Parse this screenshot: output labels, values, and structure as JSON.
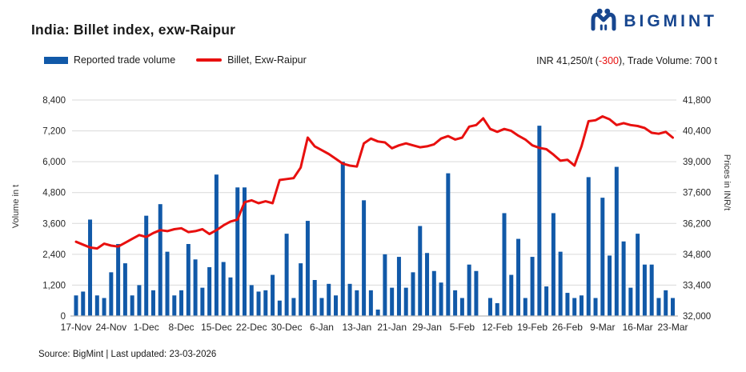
{
  "header": {
    "title": "India: Billet index, exw-Raipur",
    "logo_text": "BIGMINT",
    "logo_color": "#17468f"
  },
  "legend": {
    "bar_label": "Reported trade volume",
    "line_label": "Billet, Exw-Raipur"
  },
  "price_line": {
    "prefix": "INR 41,250/t (",
    "change": "-300",
    "suffix": "), Trade Volume: 700 t"
  },
  "footer": {
    "text": "Source: BigMint | Last updated: 23-03-2026"
  },
  "colors": {
    "bar": "#1159a8",
    "line": "#e8100f",
    "grid": "#d9d9d9",
    "baseline": "#b7b7b7"
  },
  "chart_data": {
    "type": "bar+line",
    "title": "India: Billet index, exw-Raipur",
    "x_tick_labels": [
      "17-Nov",
      "24-Nov",
      "1-Dec",
      "8-Dec",
      "15-Dec",
      "22-Dec",
      "30-Dec",
      "6-Jan",
      "13-Jan",
      "21-Jan",
      "29-Jan",
      "5-Feb",
      "12-Feb",
      "19-Feb",
      "26-Feb",
      "9-Mar",
      "16-Mar",
      "23-Mar"
    ],
    "x_tick_every": 5,
    "left_axis": {
      "title": "Volume in t",
      "min": 0,
      "max": 8400,
      "step": 1200
    },
    "right_axis": {
      "title": "Prices in INR/t",
      "min": 32000,
      "max": 43200,
      "step": 1400
    },
    "grid": "horizontal",
    "legend_position": "top-left",
    "bar_series": {
      "name": "Reported trade volume",
      "axis": "left",
      "values": [
        800,
        950,
        3750,
        800,
        700,
        1700,
        2800,
        2050,
        800,
        1200,
        3900,
        1000,
        4350,
        2500,
        800,
        1000,
        2800,
        2200,
        1100,
        1900,
        5500,
        2100,
        1500,
        5000,
        5000,
        1200,
        950,
        1000,
        1600,
        600,
        3200,
        700,
        2050,
        3700,
        1400,
        700,
        1250,
        800,
        6000,
        1250,
        1000,
        4500,
        1000,
        250,
        2400,
        1100,
        2300,
        1100,
        1700,
        3500,
        2450,
        1750,
        1300,
        5550,
        1000,
        700,
        2000,
        1750,
        0,
        700,
        500,
        4000,
        1600,
        3000,
        700,
        2300,
        7400,
        1150,
        4000,
        2500,
        900,
        700,
        800,
        5400,
        700,
        4600,
        2350,
        5800,
        2900,
        1100,
        3200,
        2000,
        2000,
        700,
        1000,
        700
      ]
    },
    "line_series": {
      "name": "Billet, Exw-Raipur",
      "axis": "right",
      "values": [
        35850,
        35700,
        35550,
        35500,
        35750,
        35650,
        35600,
        35800,
        36000,
        36200,
        36100,
        36300,
        36450,
        36400,
        36500,
        36550,
        36350,
        36400,
        36500,
        36250,
        36450,
        36700,
        36900,
        37000,
        37900,
        38000,
        37850,
        37950,
        37850,
        39050,
        39100,
        39150,
        39700,
        41250,
        40800,
        40600,
        40400,
        40150,
        39900,
        39800,
        39750,
        40950,
        41200,
        41050,
        41000,
        40700,
        40850,
        40950,
        40850,
        40750,
        40800,
        40900,
        41200,
        41330,
        41150,
        41250,
        41820,
        41900,
        42250,
        41700,
        41550,
        41700,
        41600,
        41350,
        41150,
        40850,
        40720,
        40650,
        40370,
        40050,
        40100,
        39800,
        40800,
        42100,
        42150,
        42350,
        42200,
        41900,
        42000,
        41900,
        41850,
        41750,
        41500,
        41450,
        41550,
        41250
      ]
    }
  }
}
